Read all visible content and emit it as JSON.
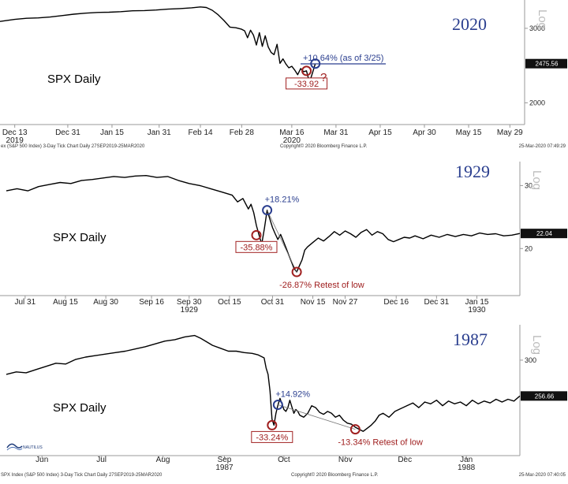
{
  "chart_data": [
    {
      "type": "line",
      "title": "2020",
      "series_label": "SPX Daily",
      "scale": "log",
      "axis_label": "Log",
      "last_value": "2475.56",
      "y_ticks": [
        {
          "value": 3000,
          "label": "3000"
        },
        {
          "value": 2000,
          "label": "2000"
        }
      ],
      "ylim": [
        1800,
        3500
      ],
      "x_ticks": [
        {
          "label": "Dec 13",
          "sub": "2019",
          "x": 0
        },
        {
          "label": "Dec 31",
          "sub": "",
          "x": 18
        },
        {
          "label": "Jan 15",
          "sub": "",
          "x": 33
        },
        {
          "label": "Jan 31",
          "sub": "",
          "x": 49
        },
        {
          "label": "Feb 14",
          "sub": "",
          "x": 63
        },
        {
          "label": "Feb 28",
          "sub": "",
          "x": 77
        },
        {
          "label": "Mar 16",
          "sub": "2020",
          "x": 94
        },
        {
          "label": "Mar 31",
          "sub": "",
          "x": 109
        },
        {
          "label": "Apr 15",
          "sub": "",
          "x": 124
        },
        {
          "label": "Apr 30",
          "sub": "",
          "x": 139
        },
        {
          "label": "May 15",
          "sub": "",
          "x": 154
        },
        {
          "label": "May 29",
          "sub": "",
          "x": 168
        }
      ],
      "xlim": [
        -5,
        173
      ],
      "x": [
        -5,
        0,
        4,
        8,
        12,
        16,
        20,
        24,
        28,
        32,
        36,
        40,
        44,
        48,
        52,
        56,
        60,
        63,
        65,
        67,
        69,
        71,
        73,
        75,
        77,
        78,
        79,
        80,
        81,
        82,
        83,
        84,
        85,
        86,
        87,
        88,
        89,
        90,
        91,
        92,
        93,
        94,
        95,
        96,
        97,
        98,
        99,
        100,
        101,
        102
      ],
      "y": [
        3115,
        3150,
        3168,
        3175,
        3190,
        3215,
        3240,
        3258,
        3270,
        3275,
        3285,
        3300,
        3305,
        3315,
        3330,
        3340,
        3355,
        3370,
        3360,
        3310,
        3230,
        3130,
        3020,
        3010,
        2985,
        2960,
        2850,
        2970,
        2890,
        2740,
        2930,
        2720,
        2880,
        2710,
        2630,
        2600,
        2750,
        2480,
        2540,
        2470,
        2420,
        2440,
        2390,
        2330,
        2410,
        2370,
        2380,
        2235,
        2350,
        2475.56
      ],
      "annotations": {
        "drawdown": "-33.92",
        "bounce": "+10.64% (as of 3/25)",
        "question": "?"
      },
      "footer_left": "ex (S&P 500 Index) 3-Day Tick Chart  Daily 27SEP2019-25MAR2020",
      "footer_center": "Copyright© 2020 Bloomberg Finance L.P.",
      "footer_right": "25-Mar-2020 07:49:29"
    },
    {
      "type": "line",
      "title": "1929",
      "series_label": "SPX Daily",
      "scale": "log",
      "axis_label": "Log",
      "last_value": "22.04",
      "y_ticks": [
        {
          "value": 30,
          "label": "30"
        },
        {
          "value": 20,
          "label": "20"
        }
      ],
      "ylim": [
        15,
        35
      ],
      "x_ticks": [
        {
          "label": "Jul 31",
          "sub": "",
          "x": 7
        },
        {
          "label": "Aug 15",
          "sub": "",
          "x": 22
        },
        {
          "label": "Aug 30",
          "sub": "",
          "x": 37
        },
        {
          "label": "Sep 16",
          "sub": "",
          "x": 54
        },
        {
          "label": "Sep 30",
          "sub": "1929",
          "x": 68
        },
        {
          "label": "Oct 15",
          "sub": "",
          "x": 83
        },
        {
          "label": "Oct 31",
          "sub": "",
          "x": 99
        },
        {
          "label": "Nov 15",
          "sub": "",
          "x": 114
        },
        {
          "label": "Nov 27",
          "sub": "",
          "x": 126
        },
        {
          "label": "Dec 16",
          "sub": "",
          "x": 145
        },
        {
          "label": "Dec 31",
          "sub": "",
          "x": 160
        },
        {
          "label": "Jan 15",
          "sub": "1930",
          "x": 175
        }
      ],
      "xlim": [
        0,
        191
      ],
      "x": [
        0,
        4,
        8,
        12,
        16,
        20,
        24,
        28,
        32,
        36,
        40,
        44,
        48,
        52,
        56,
        60,
        64,
        68,
        72,
        76,
        80,
        84,
        86,
        88,
        90,
        91,
        92,
        93,
        94,
        95,
        96,
        97,
        98,
        99,
        100,
        101,
        102,
        103,
        104,
        105,
        106,
        107,
        108,
        109,
        110,
        111,
        112,
        114,
        116,
        118,
        120,
        122,
        124,
        126,
        128,
        130,
        132,
        134,
        136,
        138,
        140,
        142,
        144,
        146,
        148,
        150,
        152,
        155,
        158,
        161,
        164,
        167,
        170,
        173,
        176,
        179,
        182,
        185,
        188,
        191
      ],
      "y": [
        29.0,
        29.4,
        29.0,
        29.8,
        30.2,
        30.6,
        30.4,
        31.0,
        31.2,
        31.5,
        31.8,
        31.6,
        31.9,
        32.0,
        31.6,
        31.8,
        31.0,
        30.4,
        30.0,
        29.4,
        28.8,
        28.2,
        27.0,
        27.6,
        25.8,
        26.6,
        25.2,
        23.2,
        21.8,
        20.6,
        22.8,
        25.6,
        24.2,
        22.9,
        22.0,
        21.2,
        21.9,
        21.0,
        20.1,
        19.2,
        18.4,
        17.6,
        17.2,
        17.9,
        18.6,
        19.8,
        20.2,
        20.8,
        21.4,
        21.0,
        21.6,
        22.3,
        21.8,
        22.4,
        22.0,
        21.5,
        22.2,
        22.6,
        21.8,
        22.3,
        22.0,
        21.2,
        20.9,
        21.2,
        21.5,
        21.4,
        21.7,
        21.3,
        21.8,
        21.5,
        21.9,
        21.6,
        21.9,
        21.7,
        22.1,
        21.9,
        22.0,
        21.7,
        21.8,
        22.04
      ],
      "annotations": {
        "drawdown": "-35.88%",
        "bounce": "+18.21%",
        "retest": "-26.87%  Retest of low"
      }
    },
    {
      "type": "line",
      "title": "1987",
      "series_label": "SPX Daily",
      "scale": "log",
      "axis_label": "Log",
      "last_value": "256.66",
      "y_ticks": [
        {
          "value": 300,
          "label": "300"
        }
      ],
      "ylim": [
        200,
        350
      ],
      "x_ticks": [
        {
          "label": "Jun",
          "sub": "",
          "x": 5
        },
        {
          "label": "Jul",
          "sub": "",
          "x": 35
        },
        {
          "label": "Aug",
          "sub": "",
          "x": 66
        },
        {
          "label": "Sep",
          "sub": "1987",
          "x": 97
        },
        {
          "label": "Oct",
          "sub": "",
          "x": 127
        },
        {
          "label": "Nov",
          "sub": "",
          "x": 158
        },
        {
          "label": "Dec",
          "sub": "",
          "x": 188
        },
        {
          "label": "Jan",
          "sub": "1988",
          "x": 219
        }
      ],
      "xlim": [
        -13,
        246
      ],
      "x": [
        -13,
        -8,
        -3,
        2,
        7,
        12,
        17,
        22,
        27,
        32,
        37,
        42,
        47,
        52,
        57,
        62,
        67,
        72,
        77,
        82,
        85,
        88,
        91,
        95,
        99,
        103,
        107,
        111,
        114,
        117,
        118,
        119,
        120,
        121,
        122,
        123,
        124,
        125,
        126,
        127,
        128,
        129,
        130,
        131,
        132,
        133,
        134,
        135,
        137,
        139,
        141,
        143,
        145,
        147,
        149,
        151,
        153,
        155,
        157,
        159,
        161,
        163,
        165,
        167,
        169,
        171,
        173,
        175,
        177,
        180,
        183,
        186,
        189,
        192,
        195,
        198,
        201,
        204,
        207,
        210,
        213,
        216,
        219,
        222,
        225,
        228,
        231,
        234,
        237,
        240,
        243,
        246
      ],
      "y": [
        282,
        285,
        284,
        288,
        292,
        296,
        295,
        301,
        304,
        306,
        308,
        310,
        312,
        315,
        318,
        322,
        326,
        328,
        332,
        334,
        330,
        325,
        320,
        316,
        312,
        312,
        310,
        309,
        307,
        303,
        290,
        282,
        262,
        232,
        226,
        238,
        247,
        254,
        248,
        242,
        240,
        244,
        252,
        245,
        238,
        242,
        240,
        236,
        234,
        238,
        246,
        244,
        239,
        237,
        240,
        238,
        234,
        236,
        231,
        228,
        227,
        224,
        222,
        220,
        223,
        226,
        230,
        236,
        238,
        234,
        240,
        243,
        246,
        249,
        244,
        250,
        248,
        252,
        246,
        251,
        248,
        250,
        246,
        252,
        248,
        251,
        249,
        253,
        250,
        253,
        251,
        256.66
      ],
      "annotations": {
        "drawdown": "-33.24%",
        "bounce": "+14.92%",
        "retest": "-13.34%  Retest of low"
      },
      "logo": "NAUTILUS",
      "footer_left": "SPX Index (S&P 500 Index) 3-Day Tick Chart  Daily 27SEP2019-25MAR2020",
      "footer_center": "Copyright© 2020 Bloomberg Finance L.P.",
      "footer_right": "25-Mar-2020 07:40:05"
    }
  ],
  "colors": {
    "annotation_red": "#a02020",
    "annotation_blue": "#2b3f8f",
    "title_blue": "#2b3f8f"
  }
}
